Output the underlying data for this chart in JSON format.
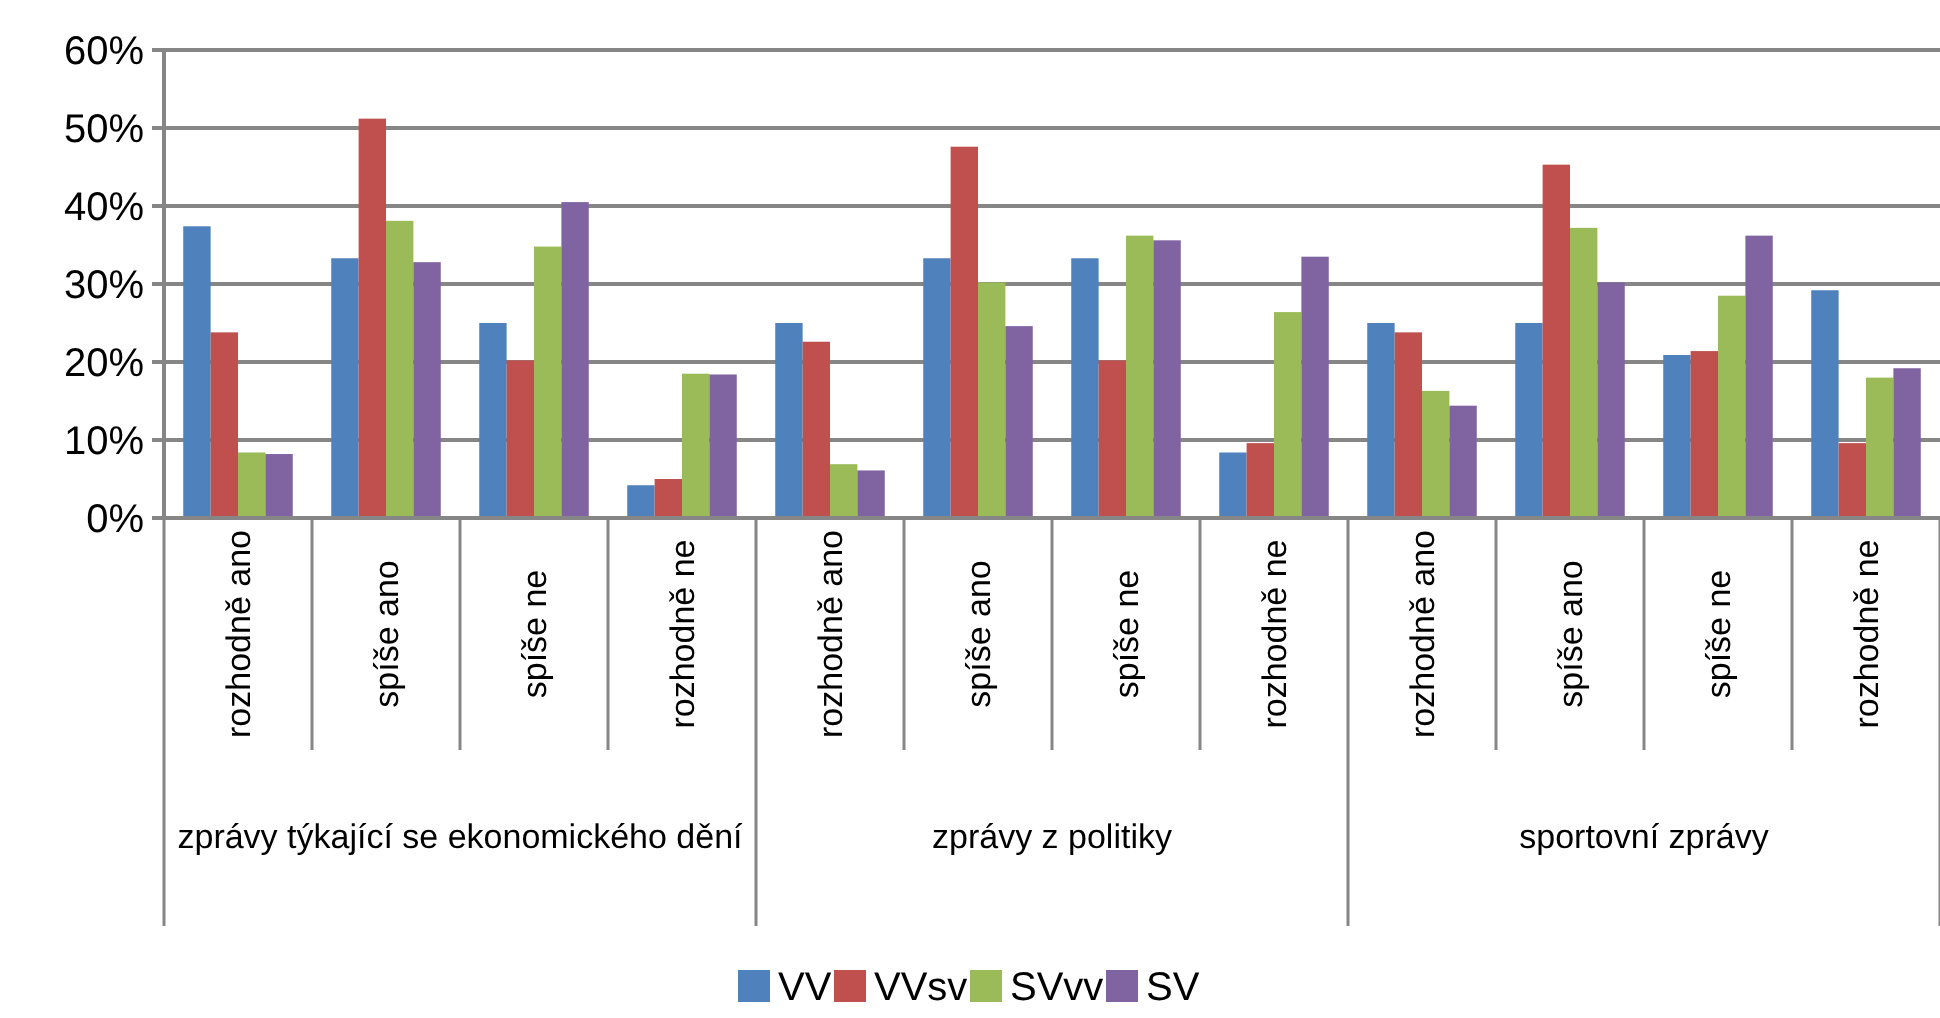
{
  "chart_data": {
    "type": "bar",
    "categories": [
      "rozhodně ano",
      "spíše ano",
      "spíše ne",
      "rozhodně ne",
      "rozhodně ano",
      "spíše ano",
      "spíše ne",
      "rozhodně ne",
      "rozhodně ano",
      "spíše ano",
      "spíše ne",
      "rozhodně ne"
    ],
    "annotations": [
      "zprávy týkající se ekonomického dění",
      "zprávy z politiky",
      "sportovní zprávy"
    ],
    "series": [
      {
        "name": "VV",
        "color": "#4f81bd",
        "values": [
          37.4,
          33.3,
          25.0,
          4.2,
          25.0,
          33.3,
          33.3,
          8.4,
          25.0,
          25.0,
          20.9,
          29.2
        ]
      },
      {
        "name": "VVsv",
        "color": "#c0504d",
        "values": [
          23.8,
          51.2,
          20.2,
          5.0,
          22.6,
          47.6,
          20.2,
          9.6,
          23.8,
          45.3,
          21.4,
          9.6
        ]
      },
      {
        "name": "SVvv",
        "color": "#9bbb59",
        "values": [
          8.4,
          38.1,
          34.8,
          18.5,
          6.9,
          30.2,
          36.2,
          26.4,
          16.3,
          37.2,
          28.5,
          18.0
        ]
      },
      {
        "name": "SV",
        "color": "#8064a2",
        "values": [
          8.2,
          32.8,
          40.5,
          18.4,
          6.1,
          24.6,
          35.6,
          33.5,
          14.4,
          30.2,
          36.2,
          19.2
        ]
      }
    ],
    "ylim": [
      0,
      60
    ],
    "yticks": [
      {
        "value": 0,
        "label": "0%"
      },
      {
        "value": 10,
        "label": "10%"
      },
      {
        "value": 20,
        "label": "20%"
      },
      {
        "value": 30,
        "label": "30%"
      },
      {
        "value": 40,
        "label": "40%"
      },
      {
        "value": 50,
        "label": "50%"
      },
      {
        "value": 60,
        "label": "60%"
      }
    ],
    "grid": "y",
    "legend": "bottom"
  }
}
